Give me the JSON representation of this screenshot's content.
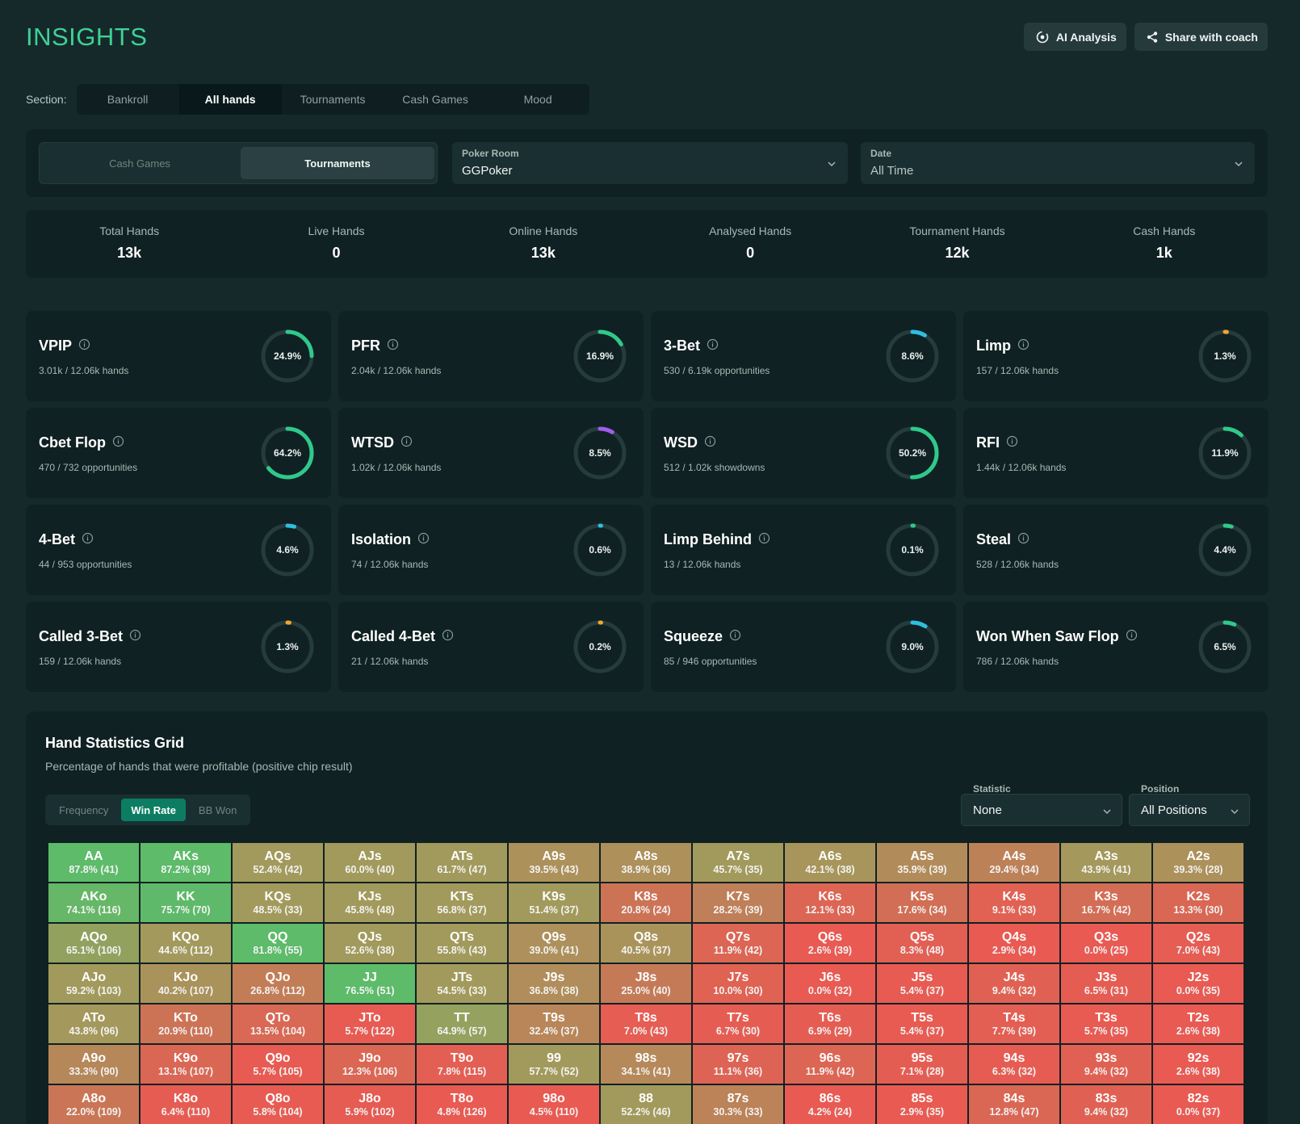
{
  "header": {
    "title": "INSIGHTS",
    "ai_analysis_label": "AI Analysis",
    "share_label": "Share with coach"
  },
  "section": {
    "label": "Section:",
    "tabs": [
      "Bankroll",
      "All hands",
      "Tournaments",
      "Cash Games",
      "Mood"
    ],
    "active": 1
  },
  "filters": {
    "game_types": [
      "Cash Games",
      "Tournaments"
    ],
    "active_game_type": 1,
    "poker_room": {
      "label": "Poker Room",
      "value": "GGPoker"
    },
    "date": {
      "label": "Date",
      "value": "All Time"
    }
  },
  "summary": [
    {
      "label": "Total Hands",
      "value": "13k"
    },
    {
      "label": "Live Hands",
      "value": "0"
    },
    {
      "label": "Online Hands",
      "value": "13k"
    },
    {
      "label": "Analysed Hands",
      "value": "0"
    },
    {
      "label": "Tournament Hands",
      "value": "12k"
    },
    {
      "label": "Cash Hands",
      "value": "1k"
    }
  ],
  "stats": [
    {
      "name": "VPIP",
      "sub": "3.01k / 12.06k hands",
      "pct": "24.9%",
      "value": 24.9,
      "color": "#2fc98a"
    },
    {
      "name": "PFR",
      "sub": "2.04k / 12.06k hands",
      "pct": "16.9%",
      "value": 16.9,
      "color": "#2fc98a"
    },
    {
      "name": "3-Bet",
      "sub": "530 / 6.19k opportunities",
      "pct": "8.6%",
      "value": 8.6,
      "color": "#2cc0e0"
    },
    {
      "name": "Limp",
      "sub": "157 / 12.06k hands",
      "pct": "1.3%",
      "value": 1.3,
      "color": "#f2a632"
    },
    {
      "name": "Cbet Flop",
      "sub": "470 / 732 opportunities",
      "pct": "64.2%",
      "value": 64.2,
      "color": "#2fc98a"
    },
    {
      "name": "WTSD",
      "sub": "1.02k / 12.06k hands",
      "pct": "8.5%",
      "value": 8.5,
      "color": "#a15cf0"
    },
    {
      "name": "WSD",
      "sub": "512 / 1.02k showdowns",
      "pct": "50.2%",
      "value": 50.2,
      "color": "#2fc98a"
    },
    {
      "name": "RFI",
      "sub": "1.44k / 12.06k hands",
      "pct": "11.9%",
      "value": 11.9,
      "color": "#2fc98a"
    },
    {
      "name": "4-Bet",
      "sub": "44 / 953 opportunities",
      "pct": "4.6%",
      "value": 4.6,
      "color": "#2cc0e0"
    },
    {
      "name": "Isolation",
      "sub": "74 / 12.06k hands",
      "pct": "0.6%",
      "value": 0.6,
      "color": "#2cc0e0"
    },
    {
      "name": "Limp Behind",
      "sub": "13 / 12.06k hands",
      "pct": "0.1%",
      "value": 0.1,
      "color": "#2fc98a"
    },
    {
      "name": "Steal",
      "sub": "528 / 12.06k hands",
      "pct": "4.4%",
      "value": 4.4,
      "color": "#2fc98a"
    },
    {
      "name": "Called 3-Bet",
      "sub": "159 / 12.06k hands",
      "pct": "1.3%",
      "value": 1.3,
      "color": "#f2a632"
    },
    {
      "name": "Called 4-Bet",
      "sub": "21 / 12.06k hands",
      "pct": "0.2%",
      "value": 0.2,
      "color": "#f2a632"
    },
    {
      "name": "Squeeze",
      "sub": "85 / 946 opportunities",
      "pct": "9.0%",
      "value": 9.0,
      "color": "#2cc0e0"
    },
    {
      "name": "Won When Saw Flop",
      "sub": "786 / 12.06k hands",
      "pct": "6.5%",
      "value": 6.5,
      "color": "#2fc98a"
    }
  ],
  "hand_grid": {
    "title": "Hand Statistics Grid",
    "subtitle": "Percentage of hands that were profitable (positive chip result)",
    "modes": [
      "Frequency",
      "Win Rate",
      "BB Won"
    ],
    "active_mode": 1,
    "statistic": {
      "label": "Statistic",
      "value": "None"
    },
    "position": {
      "label": "Position",
      "value": "All Positions"
    },
    "rows": [
      [
        [
          "AA",
          "87.8% (41)"
        ],
        [
          "AKs",
          "87.2% (39)"
        ],
        [
          "AQs",
          "52.4% (42)"
        ],
        [
          "AJs",
          "60.0% (40)"
        ],
        [
          "ATs",
          "61.7% (47)"
        ],
        [
          "A9s",
          "39.5% (43)"
        ],
        [
          "A8s",
          "38.9% (36)"
        ],
        [
          "A7s",
          "45.7% (35)"
        ],
        [
          "A6s",
          "42.1% (38)"
        ],
        [
          "A5s",
          "35.9% (39)"
        ],
        [
          "A4s",
          "29.4% (34)"
        ],
        [
          "A3s",
          "43.9% (41)"
        ],
        [
          "A2s",
          "39.3% (28)"
        ]
      ],
      [
        [
          "AKo",
          "74.1% (116)"
        ],
        [
          "KK",
          "75.7% (70)"
        ],
        [
          "KQs",
          "48.5% (33)"
        ],
        [
          "KJs",
          "45.8% (48)"
        ],
        [
          "KTs",
          "56.8% (37)"
        ],
        [
          "K9s",
          "51.4% (37)"
        ],
        [
          "K8s",
          "20.8% (24)"
        ],
        [
          "K7s",
          "28.2% (39)"
        ],
        [
          "K6s",
          "12.1% (33)"
        ],
        [
          "K5s",
          "17.6% (34)"
        ],
        [
          "K4s",
          "9.1% (33)"
        ],
        [
          "K3s",
          "16.7% (42)"
        ],
        [
          "K2s",
          "13.3% (30)"
        ]
      ],
      [
        [
          "AQo",
          "65.1% (106)"
        ],
        [
          "KQo",
          "44.6% (112)"
        ],
        [
          "QQ",
          "81.8% (55)"
        ],
        [
          "QJs",
          "52.6% (38)"
        ],
        [
          "QTs",
          "55.8% (43)"
        ],
        [
          "Q9s",
          "39.0% (41)"
        ],
        [
          "Q8s",
          "40.5% (37)"
        ],
        [
          "Q7s",
          "11.9% (42)"
        ],
        [
          "Q6s",
          "2.6% (39)"
        ],
        [
          "Q5s",
          "8.3% (48)"
        ],
        [
          "Q4s",
          "2.9% (34)"
        ],
        [
          "Q3s",
          "0.0% (25)"
        ],
        [
          "Q2s",
          "7.0% (43)"
        ]
      ],
      [
        [
          "AJo",
          "59.2% (103)"
        ],
        [
          "KJo",
          "40.2% (107)"
        ],
        [
          "QJo",
          "26.8% (112)"
        ],
        [
          "JJ",
          "76.5% (51)"
        ],
        [
          "JTs",
          "54.5% (33)"
        ],
        [
          "J9s",
          "36.8% (38)"
        ],
        [
          "J8s",
          "25.0% (40)"
        ],
        [
          "J7s",
          "10.0% (30)"
        ],
        [
          "J6s",
          "0.0% (32)"
        ],
        [
          "J5s",
          "5.4% (37)"
        ],
        [
          "J4s",
          "9.4% (32)"
        ],
        [
          "J3s",
          "6.5% (31)"
        ],
        [
          "J2s",
          "0.0% (35)"
        ]
      ],
      [
        [
          "ATo",
          "43.8% (96)"
        ],
        [
          "KTo",
          "20.9% (110)"
        ],
        [
          "QTo",
          "13.5% (104)"
        ],
        [
          "JTo",
          "5.7% (122)"
        ],
        [
          "TT",
          "64.9% (57)"
        ],
        [
          "T9s",
          "32.4% (37)"
        ],
        [
          "T8s",
          "7.0% (43)"
        ],
        [
          "T7s",
          "6.7% (30)"
        ],
        [
          "T6s",
          "6.9% (29)"
        ],
        [
          "T5s",
          "5.4% (37)"
        ],
        [
          "T4s",
          "7.7% (39)"
        ],
        [
          "T3s",
          "5.7% (35)"
        ],
        [
          "T2s",
          "2.6% (38)"
        ]
      ],
      [
        [
          "A9o",
          "33.3% (90)"
        ],
        [
          "K9o",
          "13.1% (107)"
        ],
        [
          "Q9o",
          "5.7% (105)"
        ],
        [
          "J9o",
          "12.3% (106)"
        ],
        [
          "T9o",
          "7.8% (115)"
        ],
        [
          "99",
          "57.7% (52)"
        ],
        [
          "98s",
          "34.1% (41)"
        ],
        [
          "97s",
          "11.1% (36)"
        ],
        [
          "96s",
          "11.9% (42)"
        ],
        [
          "95s",
          "7.1% (28)"
        ],
        [
          "94s",
          "6.3% (32)"
        ],
        [
          "93s",
          "9.4% (32)"
        ],
        [
          "92s",
          "2.6% (38)"
        ]
      ],
      [
        [
          "A8o",
          "22.0% (109)"
        ],
        [
          "K8o",
          "6.4% (110)"
        ],
        [
          "Q8o",
          "5.8% (104)"
        ],
        [
          "J8o",
          "5.9% (102)"
        ],
        [
          "T8o",
          "4.8% (126)"
        ],
        [
          "98o",
          "4.5% (110)"
        ],
        [
          "88",
          "52.2% (46)"
        ],
        [
          "87s",
          "30.3% (33)"
        ],
        [
          "86s",
          "4.2% (24)"
        ],
        [
          "85s",
          "2.9% (35)"
        ],
        [
          "84s",
          "12.8% (47)"
        ],
        [
          "83s",
          "9.4% (32)"
        ],
        [
          "82s",
          "0.0% (37)"
        ]
      ]
    ]
  },
  "colors": {
    "accent": "#3ed195",
    "win_high": "#5dbb6a",
    "win_mid": "#a29a5c",
    "win_low": "#e85a52"
  }
}
